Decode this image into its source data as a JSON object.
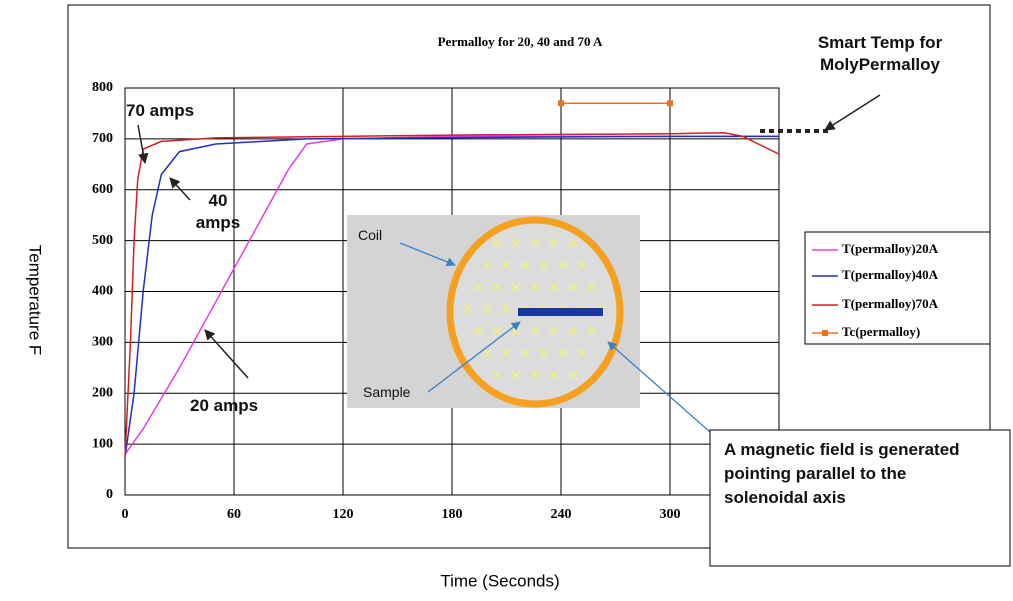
{
  "chart_data": {
    "type": "line",
    "title": "Permalloy for 20, 40 and 70 A",
    "x_label": "Time (Seconds)",
    "y_label": "Temperature F",
    "xlim": [
      0,
      360
    ],
    "xticks": [
      0,
      60,
      120,
      180,
      240,
      300
    ],
    "ylim": [
      0,
      800
    ],
    "yticks": [
      0,
      100,
      200,
      300,
      400,
      500,
      600,
      700,
      800
    ],
    "grid": true,
    "legend": "right",
    "series": [
      {
        "name": "T(permalloy)20A",
        "color": "#e040e0",
        "marker": false,
        "x": [
          0,
          10,
          30,
          50,
          70,
          90,
          100,
          120,
          180,
          240,
          300,
          360
        ],
        "values": [
          80,
          130,
          250,
          380,
          510,
          640,
          690,
          700,
          705,
          705,
          705,
          705
        ]
      },
      {
        "name": "T(permalloy)40A",
        "color": "#2030c0",
        "marker": false,
        "x": [
          0,
          5,
          10,
          15,
          20,
          30,
          50,
          100,
          200,
          300,
          360
        ],
        "values": [
          75,
          200,
          400,
          550,
          630,
          675,
          690,
          700,
          703,
          705,
          705
        ]
      },
      {
        "name": "T(permalloy)70A",
        "color": "#d02020",
        "marker": false,
        "x": [
          0,
          3,
          5,
          7,
          10,
          20,
          50,
          120,
          200,
          300,
          330,
          340,
          360
        ],
        "values": [
          75,
          300,
          500,
          620,
          680,
          695,
          702,
          705,
          708,
          710,
          712,
          705,
          670
        ]
      },
      {
        "name": "Tc(permalloy)",
        "color": "#f07020",
        "marker": true,
        "x": [
          240,
          300
        ],
        "values": [
          770,
          770
        ]
      }
    ],
    "annotations": {
      "label_70": "70 amps",
      "label_40": "40 amps",
      "label_20": "20 amps",
      "smart_temp": "Smart Temp for MolyPermalloy",
      "field_note": "A magnetic field is generated pointing parallel to the solenoidal axis",
      "coil": "Coil",
      "sample": "Sample"
    }
  }
}
